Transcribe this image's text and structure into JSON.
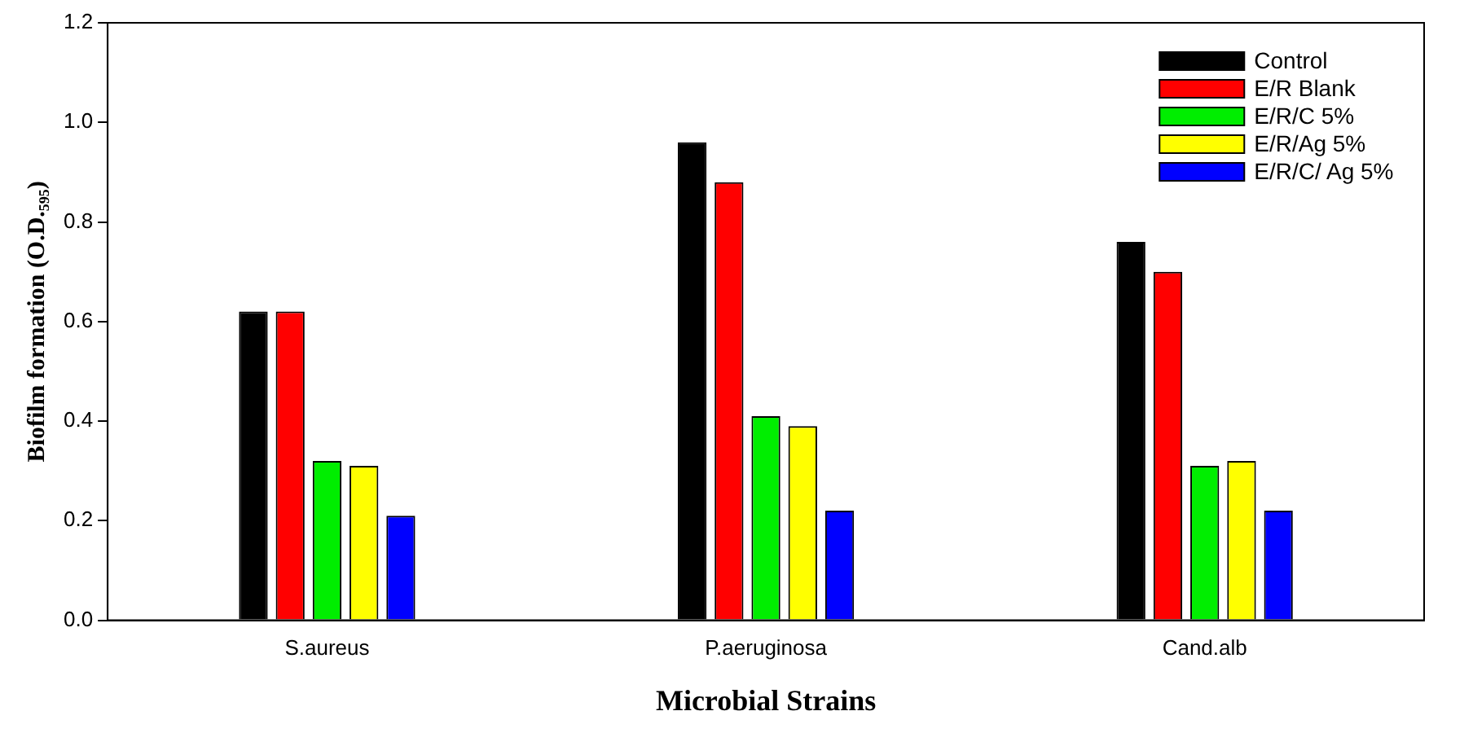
{
  "chart_data": {
    "type": "bar",
    "xlabel": "Microbial Strains",
    "ylabel": "Biofilm formation (O.D.₅₉₅)",
    "categories": [
      "S.aureus",
      "P.aeruginosa",
      "Cand.alb"
    ],
    "series": [
      {
        "name": "Control",
        "color": "#000000",
        "values": [
          0.62,
          0.96,
          0.76
        ]
      },
      {
        "name": "E/R Blank",
        "color": "#ff0000",
        "values": [
          0.62,
          0.88,
          0.7
        ]
      },
      {
        "name": "E/R/C 5%",
        "color": "#00ee00",
        "values": [
          0.32,
          0.41,
          0.31
        ]
      },
      {
        "name": "E/R/Ag 5%",
        "color": "#ffff00",
        "values": [
          0.31,
          0.39,
          0.32
        ]
      },
      {
        "name": "E/R/C/ Ag 5%",
        "color": "#0000ff",
        "values": [
          0.21,
          0.22,
          0.22
        ]
      }
    ],
    "ylim": [
      0,
      1.2
    ],
    "yticks": [
      {
        "value": 0,
        "label": "0.0"
      },
      0.2,
      0.4,
      0.6,
      0.8,
      {
        "value": 1,
        "label": "1.0"
      },
      1.2
    ],
    "grid": false,
    "legend": "top right"
  }
}
